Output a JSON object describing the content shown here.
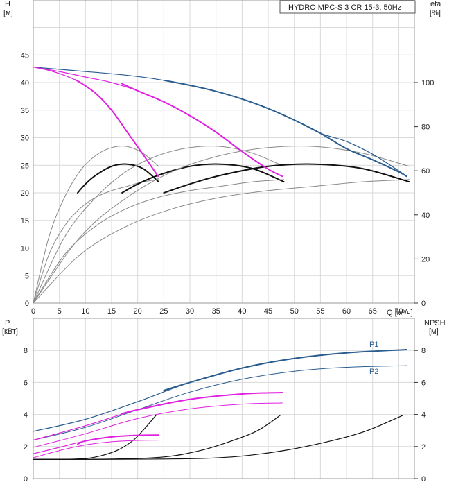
{
  "chart_data": [
    {
      "type": "line",
      "title": "HYDRO MPC-S 3 CR 15-3, 50Hz",
      "ylabel": "H",
      "yunit": "[м]",
      "y2label": "eta",
      "y2unit": "[%]",
      "xlabel": "Q [м³/ч]",
      "xlim": [
        0,
        73
      ],
      "ylim": [
        0,
        55
      ],
      "y2lim": [
        0,
        137.5
      ],
      "xticks": [
        0,
        5,
        10,
        15,
        20,
        25,
        30,
        35,
        40,
        45,
        50,
        55,
        60,
        65,
        70
      ],
      "yticks": [
        0,
        5,
        10,
        15,
        20,
        25,
        30,
        35,
        40,
        45
      ],
      "y2ticks": [
        0,
        20,
        40,
        60,
        80,
        100
      ],
      "grid": true,
      "colors": {
        "blue": "#2a5d8f",
        "magenta": "#e020e0",
        "black": "#111111",
        "gray": "#888888"
      },
      "series": [
        {
          "color": "blue",
          "width": 1.2,
          "x": [
            0,
            5,
            10,
            15,
            20,
            25,
            30,
            35,
            40,
            45,
            50,
            55,
            60,
            65,
            70,
            71.5
          ],
          "y": [
            42.8,
            42.4,
            42.0,
            41.6,
            41.1,
            40.4,
            39.5,
            38.4,
            37.0,
            35.3,
            33.2,
            30.8,
            29.3,
            27.0,
            24.0,
            23.0
          ]
        },
        {
          "color": "blue",
          "width": 2,
          "x": [
            25,
            30,
            35,
            40,
            45,
            50,
            55,
            60,
            65,
            70,
            71.5
          ],
          "y": [
            40.4,
            39.5,
            38.4,
            37.0,
            35.3,
            33.2,
            30.8,
            28.0,
            26.0,
            23.8,
            23.0
          ]
        },
        {
          "color": "magenta",
          "width": 1.2,
          "x": [
            0,
            5,
            10,
            15,
            20,
            25,
            30,
            35,
            40,
            45,
            47.7
          ],
          "y": [
            42.8,
            42.0,
            41.0,
            40.0,
            38.5,
            36.5,
            34.0,
            31.0,
            27.5,
            24.3,
            23.0
          ]
        },
        {
          "color": "magenta",
          "width": 2,
          "x": [
            17,
            20,
            25,
            30,
            35,
            40,
            45,
            47.7
          ],
          "y": [
            39.8,
            38.5,
            36.5,
            34.0,
            31.0,
            27.5,
            24.3,
            23.0
          ]
        },
        {
          "color": "magenta",
          "width": 1.2,
          "x": [
            0,
            3,
            6,
            9,
            12,
            15,
            18,
            21,
            23.9
          ],
          "y": [
            42.8,
            42.2,
            41.3,
            40.0,
            38.0,
            35.0,
            31.0,
            27.0,
            23.0
          ]
        },
        {
          "color": "magenta",
          "width": 2,
          "x": [
            8,
            9,
            12,
            15,
            18,
            21,
            23.9
          ],
          "y": [
            40.5,
            40.0,
            38.0,
            35.0,
            31.0,
            27.0,
            23.0
          ]
        }
      ],
      "eta_series": [
        {
          "color": "gray",
          "width": 1,
          "x": [
            0,
            3,
            6,
            9,
            12,
            15,
            18,
            21,
            24
          ],
          "y": [
            0,
            30,
            48,
            60,
            67,
            70.5,
            71,
            68,
            62
          ]
        },
        {
          "color": "black",
          "width": 2,
          "x": [
            8.5,
            10,
            12,
            15,
            18,
            21,
            24
          ],
          "y": [
            50,
            54,
            58,
            62,
            63,
            61,
            55
          ]
        },
        {
          "color": "gray",
          "width": 1,
          "x": [
            0,
            6,
            12,
            18,
            24,
            30,
            36,
            42,
            48
          ],
          "y": [
            0,
            30,
            48,
            60,
            67,
            70.5,
            71,
            68,
            62
          ]
        },
        {
          "color": "gray",
          "width": 1,
          "x": [
            0,
            3,
            6,
            9,
            12,
            15,
            18,
            21,
            24
          ],
          "y": [
            0,
            22,
            35,
            43,
            48,
            51,
            53,
            55,
            56
          ]
        },
        {
          "color": "black",
          "width": 2,
          "x": [
            17,
            20,
            24,
            30,
            36,
            42,
            48
          ],
          "y": [
            50,
            54,
            58,
            62,
            63,
            61,
            55
          ]
        },
        {
          "color": "gray",
          "width": 1,
          "x": [
            0,
            9,
            18,
            27,
            36,
            45,
            54,
            63,
            72
          ],
          "y": [
            0,
            30,
            48,
            60,
            67,
            70.5,
            71,
            68,
            62
          ]
        },
        {
          "color": "gray",
          "width": 1,
          "x": [
            0,
            6,
            12,
            18,
            24,
            30,
            36,
            42,
            48
          ],
          "y": [
            0,
            22,
            35,
            43,
            48,
            51,
            53,
            55,
            56
          ]
        },
        {
          "color": "gray",
          "width": 1,
          "x": [
            0,
            9,
            18,
            27,
            36,
            45,
            54,
            63,
            72
          ],
          "y": [
            0,
            22,
            35,
            43,
            48,
            51,
            53,
            55,
            56
          ]
        },
        {
          "color": "black",
          "width": 2,
          "x": [
            25,
            30,
            36,
            45,
            54,
            63,
            72
          ],
          "y": [
            50,
            54,
            58,
            62,
            63,
            61,
            55
          ]
        }
      ]
    },
    {
      "type": "line",
      "ylabel": "P",
      "yunit": "[кВт]",
      "y2label": "NPSH",
      "y2unit": "[м]",
      "xlim": [
        0,
        73
      ],
      "ylim": [
        0,
        9
      ],
      "y2lim": [
        0,
        9
      ],
      "yticks": [
        0,
        2,
        4,
        6,
        8
      ],
      "y2ticks": [
        0,
        2,
        4,
        6,
        8
      ],
      "grid": true,
      "series": [
        {
          "name": "P1",
          "color": "blue",
          "width": 1.2,
          "x": [
            0,
            10,
            20,
            30,
            40,
            50,
            60,
            71.5
          ],
          "y": [
            2.95,
            3.7,
            4.8,
            6.0,
            6.9,
            7.5,
            7.85,
            8.05
          ]
        },
        {
          "name": "P1",
          "color": "blue",
          "width": 2,
          "x": [
            25,
            30,
            40,
            50,
            60,
            71.5
          ],
          "y": [
            5.5,
            6.0,
            6.9,
            7.5,
            7.85,
            8.05
          ]
        },
        {
          "name": "P2",
          "color": "blue",
          "width": 1,
          "x": [
            0,
            10,
            20,
            30,
            40,
            50,
            60,
            71.5
          ],
          "y": [
            2.4,
            3.2,
            4.3,
            5.4,
            6.2,
            6.7,
            6.95,
            7.05
          ]
        },
        {
          "color": "magenta",
          "width": 1.2,
          "x": [
            0,
            10,
            20,
            30,
            40,
            47.7
          ],
          "y": [
            2.4,
            3.3,
            4.3,
            4.95,
            5.28,
            5.37
          ]
        },
        {
          "color": "magenta",
          "width": 2,
          "x": [
            17,
            20,
            30,
            40,
            47.7
          ],
          "y": [
            4.05,
            4.3,
            4.95,
            5.28,
            5.37
          ]
        },
        {
          "color": "magenta",
          "width": 1,
          "x": [
            0,
            10,
            20,
            30,
            40,
            47.7
          ],
          "y": [
            1.95,
            2.8,
            3.75,
            4.35,
            4.65,
            4.72
          ]
        },
        {
          "color": "magenta",
          "width": 1.2,
          "x": [
            0,
            5,
            10,
            15,
            20,
            24
          ],
          "y": [
            1.55,
            1.95,
            2.35,
            2.6,
            2.7,
            2.72
          ]
        },
        {
          "color": "magenta",
          "width": 2,
          "x": [
            8.5,
            10,
            15,
            20,
            24
          ],
          "y": [
            2.15,
            2.35,
            2.6,
            2.7,
            2.72
          ]
        },
        {
          "color": "magenta",
          "width": 1,
          "x": [
            0,
            5,
            10,
            15,
            20,
            24
          ],
          "y": [
            1.3,
            1.75,
            2.1,
            2.3,
            2.38,
            2.4
          ]
        }
      ],
      "npsh_series": [
        {
          "color": "black",
          "width": 1.2,
          "x": [
            0,
            8,
            12,
            16,
            19,
            21,
            23.5
          ],
          "y": [
            1.2,
            1.22,
            1.35,
            1.75,
            2.35,
            3.0,
            3.95
          ]
        },
        {
          "color": "black",
          "width": 1.2,
          "x": [
            0,
            15,
            25,
            32,
            38,
            43,
            47.3
          ],
          "y": [
            1.2,
            1.22,
            1.35,
            1.75,
            2.35,
            3.0,
            3.95
          ]
        },
        {
          "color": "black",
          "width": 1.2,
          "x": [
            0,
            25,
            38,
            48,
            57,
            64,
            70.8
          ],
          "y": [
            1.2,
            1.22,
            1.35,
            1.75,
            2.35,
            3.0,
            3.95
          ]
        }
      ]
    }
  ]
}
